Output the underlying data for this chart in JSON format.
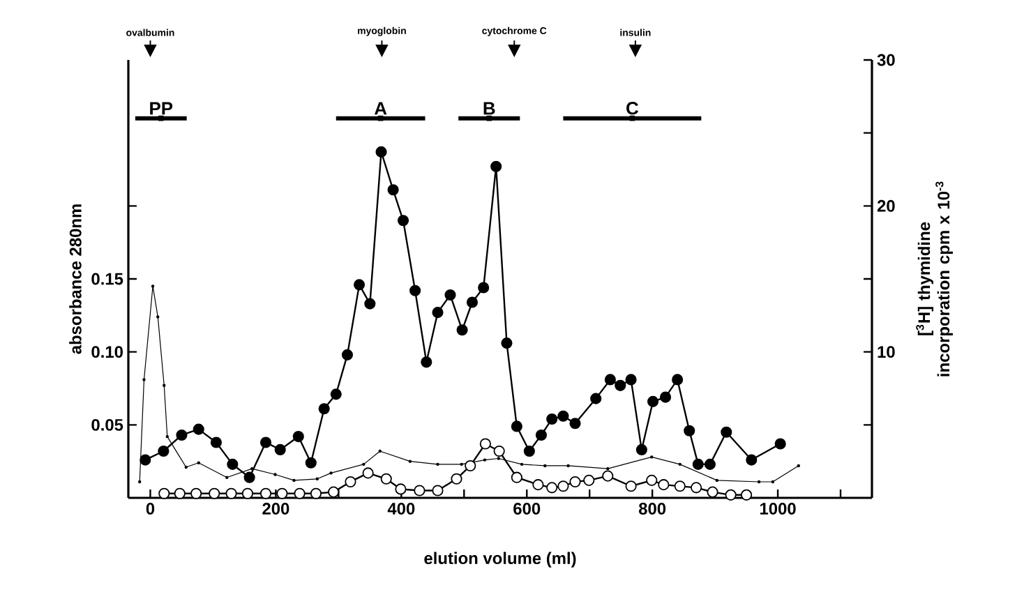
{
  "chart_data": {
    "type": "line",
    "xlabel": "elution volume (ml)",
    "ylabel": "absorbance  280nm",
    "y2label": "[$^{3}$H] thymidine incorporation cpm x 10$^{-3}$",
    "xlim": [
      -35,
      1150
    ],
    "xticks": [
      0,
      {
        "value": 100,
        "label": null
      },
      200,
      {
        "value": 300,
        "label": null
      },
      400,
      {
        "value": 500,
        "label": null
      },
      600,
      {
        "value": 700,
        "label": null
      },
      800,
      {
        "value": 900,
        "label": null
      },
      1000,
      {
        "value": 1100,
        "label": null
      }
    ],
    "ylim": [
      0,
      0.3
    ],
    "yticks": [
      {
        "value": 0.05,
        "label": "0.05"
      },
      {
        "value": 0.1,
        "label": "0.10"
      },
      {
        "value": 0.15,
        "label": "0.15"
      },
      {
        "value": 0.2,
        "label": null
      }
    ],
    "ref_lines": [
      {
        "axis": "x",
        "value": 0,
        "label": "ovalbumin"
      },
      {
        "axis": "x",
        "value": 369,
        "label": "myoglobin"
      },
      {
        "axis": "x",
        "value": 580,
        "label": "cytochrome C"
      },
      {
        "axis": "x",
        "value": 773,
        "label": "insulin"
      }
    ],
    "y2lim": [
      0,
      30
    ],
    "y2ticks": [
      {
        "value": 5,
        "label": null
      },
      10,
      {
        "value": 15,
        "label": null
      },
      20,
      {
        "value": 25,
        "label": null
      },
      30
    ],
    "series": [
      {
        "axis": "y",
        "color": "#000000",
        "marker": "none",
        "x": [
          -17,
          -10,
          4,
          12,
          22,
          27,
          57,
          77,
          122,
          162,
          199,
          229,
          266,
          288,
          340,
          366,
          414,
          458,
          496,
          533,
          555,
          592,
          629,
          666,
          729,
          799,
          844,
          903,
          970,
          992,
          1033
        ],
        "values": [
          0.011,
          0.081,
          0.145,
          0.124,
          0.077,
          0.042,
          0.021,
          0.024,
          0.014,
          0.02,
          0.016,
          0.012,
          0.013,
          0.017,
          0.023,
          0.032,
          0.025,
          0.023,
          0.023,
          0.026,
          0.027,
          0.023,
          0.022,
          0.022,
          0.02,
          0.028,
          0.023,
          0.012,
          0.011,
          0.011,
          0.022
        ]
      },
      {
        "axis": "y2",
        "color": "#000000",
        "marker": "circle",
        "x": [
          -8,
          21,
          50,
          77,
          105,
          131,
          158,
          184,
          207,
          236,
          256,
          277,
          296,
          314,
          333,
          350,
          368,
          387,
          403,
          422,
          440,
          458,
          478,
          497,
          513,
          531,
          551,
          568,
          584,
          604,
          623,
          640,
          658,
          677,
          710,
          733,
          749,
          766,
          783,
          801,
          821,
          840,
          859,
          873,
          892,
          918,
          958,
          1004
        ],
        "values": [
          2.6,
          3.2,
          4.3,
          4.7,
          3.8,
          2.3,
          1.4,
          3.8,
          3.3,
          4.2,
          2.4,
          6.1,
          7.1,
          9.8,
          14.6,
          13.3,
          23.7,
          21.1,
          19.0,
          14.2,
          9.3,
          12.7,
          13.9,
          11.5,
          13.4,
          14.4,
          22.7,
          10.6,
          4.9,
          3.2,
          4.3,
          5.4,
          5.6,
          5.1,
          6.8,
          8.1,
          7.7,
          8.1,
          3.3,
          6.6,
          6.9,
          8.1,
          4.6,
          2.3,
          2.3,
          4.5,
          2.6,
          3.7
        ]
      },
      {
        "type": "scatter",
        "axis": "y",
        "color": "#000000",
        "marker": "square",
        "x": [
          17,
          367,
          540,
          768
        ],
        "values": [
          0.26,
          0.26,
          0.26,
          0.26
        ],
        "xerrors": [
          [
            -24,
            58
          ],
          [
            296,
            438
          ],
          [
            491,
            589
          ],
          [
            658,
            878
          ]
        ],
        "value_labels": [
          "PP",
          "A",
          "B",
          "C"
        ]
      },
      {
        "axis": "y2",
        "color": "#ffffff",
        "marker": "circle",
        "x": [
          22,
          47,
          73,
          102,
          129,
          155,
          184,
          210,
          238,
          264,
          292,
          319,
          347,
          376,
          399,
          429,
          458,
          488,
          510,
          534,
          556,
          584,
          618,
          640,
          658,
          677,
          699,
          729,
          766,
          799,
          818,
          844,
          870,
          896,
          925,
          950
        ],
        "values": [
          0.3,
          0.3,
          0.3,
          0.3,
          0.3,
          0.3,
          0.3,
          0.3,
          0.3,
          0.3,
          0.4,
          1.1,
          1.7,
          1.3,
          0.6,
          0.5,
          0.5,
          1.3,
          2.2,
          3.7,
          3.2,
          1.4,
          0.9,
          0.7,
          0.8,
          1.1,
          1.2,
          1.5,
          0.8,
          1.2,
          0.9,
          0.8,
          0.7,
          0.4,
          0.2,
          0.2
        ]
      }
    ],
    "grid": false
  }
}
